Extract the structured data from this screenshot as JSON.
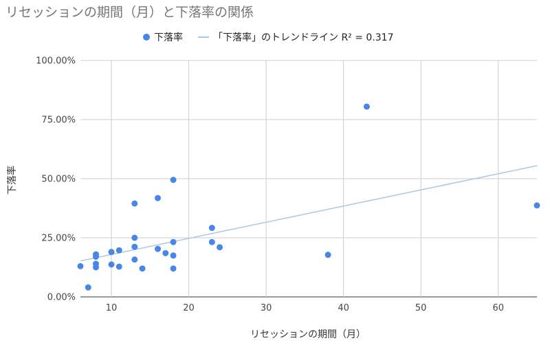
{
  "chart_data": {
    "type": "scatter",
    "title": "リセッションの期間（月）と下落率の関係",
    "xlabel": "リセッションの期間（月）",
    "ylabel": "下落率",
    "xlim": [
      6,
      65
    ],
    "ylim": [
      0,
      1
    ],
    "x_ticks": [
      10,
      20,
      30,
      40,
      50,
      60
    ],
    "x_tick_labels": [
      "10",
      "20",
      "30",
      "40",
      "50",
      "60"
    ],
    "y_ticks": [
      0,
      0.25,
      0.5,
      0.75,
      1
    ],
    "y_tick_labels": [
      "0.00%",
      "25.00%",
      "50.00%",
      "75.00%",
      "100.00%"
    ],
    "grid": true,
    "legend_position": "top",
    "series": [
      {
        "name": "下落率",
        "color": "#4a86e8",
        "points": [
          {
            "x": 6,
            "y": 0.13
          },
          {
            "x": 7,
            "y": 0.04
          },
          {
            "x": 8,
            "y": 0.18
          },
          {
            "x": 8,
            "y": 0.17
          },
          {
            "x": 8,
            "y": 0.14
          },
          {
            "x": 8,
            "y": 0.125
          },
          {
            "x": 10,
            "y": 0.19
          },
          {
            "x": 10,
            "y": 0.137
          },
          {
            "x": 11,
            "y": 0.197
          },
          {
            "x": 11,
            "y": 0.128
          },
          {
            "x": 13,
            "y": 0.395
          },
          {
            "x": 13,
            "y": 0.25
          },
          {
            "x": 13,
            "y": 0.212
          },
          {
            "x": 13,
            "y": 0.158
          },
          {
            "x": 14,
            "y": 0.12
          },
          {
            "x": 16,
            "y": 0.418
          },
          {
            "x": 16,
            "y": 0.203
          },
          {
            "x": 17,
            "y": 0.185
          },
          {
            "x": 18,
            "y": 0.495
          },
          {
            "x": 18,
            "y": 0.232
          },
          {
            "x": 18,
            "y": 0.175
          },
          {
            "x": 18,
            "y": 0.12
          },
          {
            "x": 23,
            "y": 0.292
          },
          {
            "x": 23,
            "y": 0.232
          },
          {
            "x": 24,
            "y": 0.21
          },
          {
            "x": 38,
            "y": 0.178
          },
          {
            "x": 43,
            "y": 0.805
          },
          {
            "x": 65,
            "y": 0.387
          }
        ]
      }
    ],
    "trendline": {
      "name": "「下落率」のトレンドライン R² = 0.317",
      "color": "#a8c7e6",
      "x_start": 6,
      "y_start": 0.152,
      "x_end": 65,
      "y_end": 0.555
    }
  }
}
